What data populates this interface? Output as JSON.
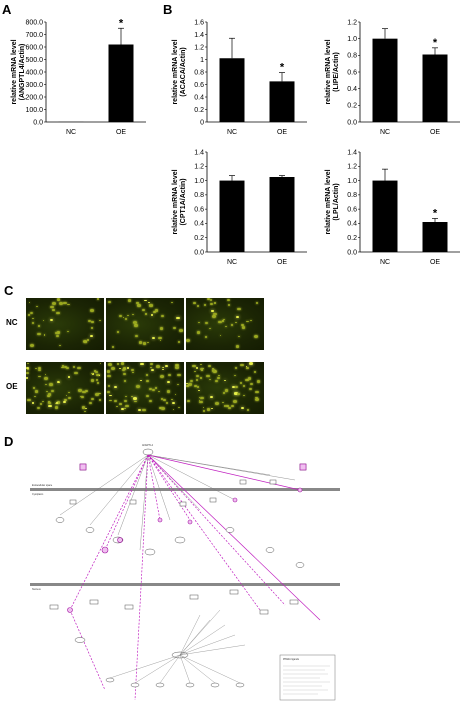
{
  "panels": {
    "a_letter": "A",
    "b_letter": "B",
    "c_letter": "C",
    "d_letter": "D"
  },
  "chart_data": [
    {
      "id": "angptl4",
      "type": "bar",
      "ylabel_line1": "relative mRNA level",
      "ylabel_line2": "(ANGPTL4/Actin)",
      "categories": [
        "NC",
        "OE"
      ],
      "values": [
        1,
        620
      ],
      "errors": [
        0,
        130
      ],
      "significant": [
        false,
        true
      ],
      "ylim": [
        0,
        800
      ],
      "yticks": [
        "0.0",
        "100.0",
        "200.0",
        "300.0",
        "400.0",
        "500.0",
        "600.0",
        "700.0",
        "800.0"
      ],
      "ytick_values": [
        0,
        100,
        200,
        300,
        400,
        500,
        600,
        700,
        800
      ]
    },
    {
      "id": "acaca",
      "type": "bar",
      "ylabel_line1": "relative mRNA level",
      "ylabel_line2": "(ACACA/Actin)",
      "categories": [
        "NC",
        "OE"
      ],
      "values": [
        1.02,
        0.65
      ],
      "errors": [
        0.32,
        0.14
      ],
      "significant": [
        false,
        true
      ],
      "ylim": [
        0,
        1.6
      ],
      "yticks": [
        "0",
        "0.2",
        "0.4",
        "0.6",
        "0.8",
        "1",
        "1.2",
        "1.4",
        "1.6"
      ],
      "ytick_values": [
        0,
        0.2,
        0.4,
        0.6,
        0.8,
        1.0,
        1.2,
        1.4,
        1.6
      ]
    },
    {
      "id": "lipe",
      "type": "bar",
      "ylabel_line1": "relative mRNA level",
      "ylabel_line2": "(LIPE/Actin)",
      "categories": [
        "NC",
        "OE"
      ],
      "values": [
        1.0,
        0.81
      ],
      "errors": [
        0.12,
        0.08
      ],
      "significant": [
        false,
        true
      ],
      "ylim": [
        0,
        1.2
      ],
      "yticks": [
        "0.0",
        "0.2",
        "0.4",
        "0.6",
        "0.8",
        "1.0",
        "1.2"
      ],
      "ytick_values": [
        0,
        0.2,
        0.4,
        0.6,
        0.8,
        1.0,
        1.2
      ]
    },
    {
      "id": "cpt1a",
      "type": "bar",
      "ylabel_line1": "relative mRNA level",
      "ylabel_line2": "(CPT1A/Actin)",
      "categories": [
        "NC",
        "OE"
      ],
      "values": [
        1.0,
        1.05
      ],
      "errors": [
        0.07,
        0.02
      ],
      "significant": [
        false,
        false
      ],
      "ylim": [
        0,
        1.4
      ],
      "yticks": [
        "0.0",
        "0.2",
        "0.4",
        "0.6",
        "0.8",
        "1.0",
        "1.2",
        "1.4"
      ],
      "ytick_values": [
        0,
        0.2,
        0.4,
        0.6,
        0.8,
        1.0,
        1.2,
        1.4
      ]
    },
    {
      "id": "lpl",
      "type": "bar",
      "ylabel_line1": "relative mRNA level",
      "ylabel_line2": "(LPL/Actin)",
      "categories": [
        "NC",
        "OE"
      ],
      "values": [
        1.0,
        0.42
      ],
      "errors": [
        0.16,
        0.05
      ],
      "significant": [
        false,
        true
      ],
      "ylim": [
        0,
        1.4
      ],
      "yticks": [
        "0.0",
        "0.2",
        "0.4",
        "0.6",
        "0.8",
        "1.0",
        "1.2",
        "1.4"
      ],
      "ytick_values": [
        0,
        0.2,
        0.4,
        0.6,
        0.8,
        1.0,
        1.2,
        1.4
      ]
    }
  ],
  "significance_marker": "*",
  "microscopy": {
    "rows": [
      {
        "label": "NC"
      },
      {
        "label": "OE"
      }
    ]
  },
  "pathway": {
    "top_node": "ANGPTL4",
    "membrane_top_left": "Extracellular space",
    "membrane_top_left2": "Cytoplasm",
    "nucleus_label": "Nucleus",
    "legend_title": "PPARα ligands"
  }
}
